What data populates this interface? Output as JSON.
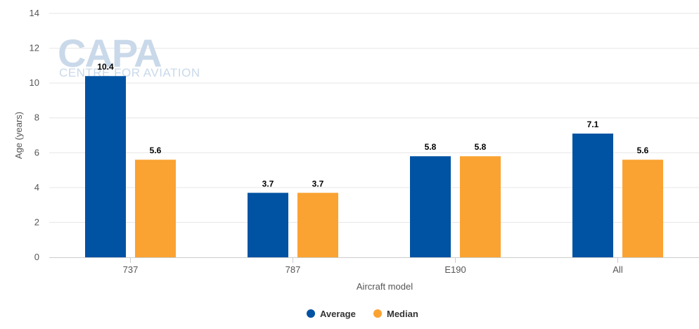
{
  "watermark": {
    "brand": "CAPA",
    "tagline": "CENTRE FOR AVIATION"
  },
  "chart_data": {
    "type": "bar",
    "categories": [
      "737",
      "787",
      "E190",
      "All"
    ],
    "series": [
      {
        "name": "Average",
        "values": [
          10.4,
          3.7,
          5.8,
          7.1
        ],
        "color": "#0052a2"
      },
      {
        "name": "Median",
        "values": [
          5.6,
          3.7,
          5.8,
          5.6
        ],
        "color": "#faa332"
      }
    ],
    "xlabel": "Aircraft model",
    "ylabel": "Age (years)",
    "ylim": [
      0,
      14
    ],
    "yticks": [
      0,
      2,
      4,
      6,
      8,
      10,
      12,
      14
    ],
    "grid": true,
    "legend_position": "bottom-center",
    "data_labels": true
  }
}
